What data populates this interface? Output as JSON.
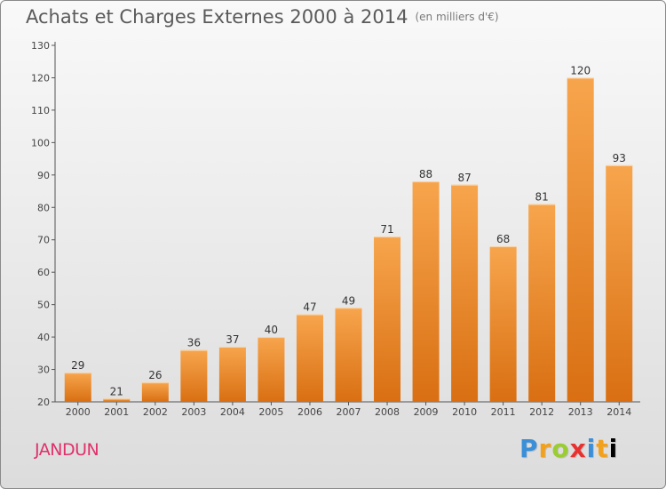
{
  "title": "Achats et Charges Externes 2000 à 2014",
  "unit_label": "(en milliers d'€)",
  "commune": "JANDUN",
  "logo": {
    "letters": [
      "P",
      "r",
      "o",
      "x",
      "i",
      "t",
      "i"
    ]
  },
  "colors": {
    "bar_top": "#f7a54d",
    "bar_bottom": "#d96f12",
    "axis": "#555555",
    "grid": "#ffffff",
    "commune": "#e0306a"
  },
  "chart_data": {
    "type": "bar",
    "title": "Achats et Charges Externes 2000 à 2014",
    "subtitle": "(en milliers d'€)",
    "xlabel": "",
    "ylabel": "",
    "categories": [
      "2000",
      "2001",
      "2002",
      "2003",
      "2004",
      "2005",
      "2006",
      "2007",
      "2008",
      "2009",
      "2010",
      "2011",
      "2012",
      "2013",
      "2014"
    ],
    "values": [
      29,
      21,
      26,
      36,
      37,
      40,
      47,
      49,
      71,
      88,
      87,
      68,
      81,
      120,
      93
    ],
    "ylim": [
      20,
      130
    ],
    "yticks": [
      20,
      30,
      40,
      50,
      60,
      70,
      80,
      90,
      100,
      110,
      120,
      130
    ],
    "grid": false,
    "data_labels": true
  }
}
